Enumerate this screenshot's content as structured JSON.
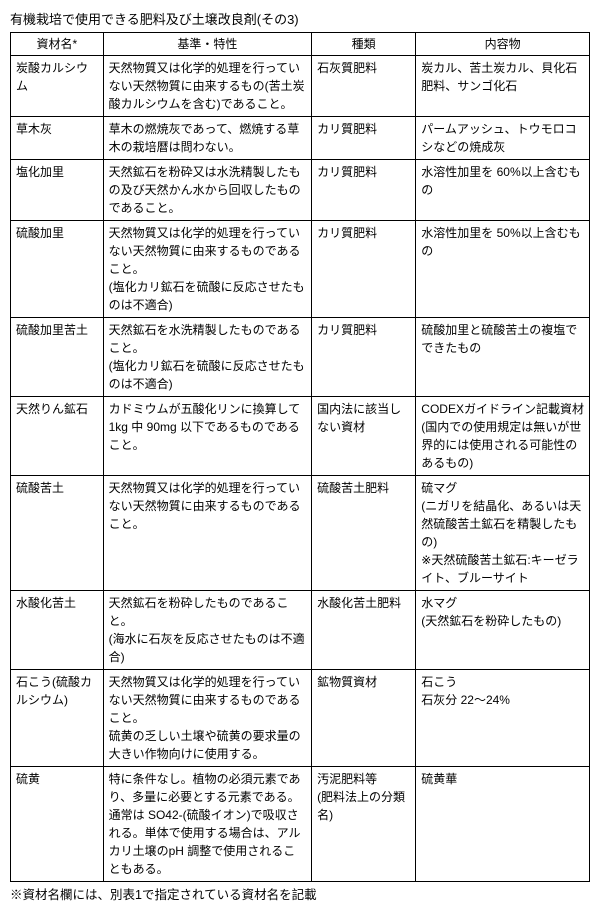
{
  "title": "有機栽培で使用できる肥料及び土壌改良剤(その3)",
  "headers": [
    "資材名*",
    "基準・特性",
    "種類",
    "内容物"
  ],
  "rows": [
    {
      "name": "炭酸カルシウム",
      "criteria": "天然物質又は化学的処理を行っていない天然物質に由来するもの(苦土炭酸カルシウムを含む)であること。",
      "type": "石灰質肥料",
      "content": "炭カル、苦土炭カル、貝化石肥料、サンゴ化石"
    },
    {
      "name": "草木灰",
      "criteria": "草木の燃焼灰であって、燃焼する草木の栽培暦は問わない。",
      "type": "カリ質肥料",
      "content": "パームアッシュ、トウモロコシなどの焼成灰"
    },
    {
      "name": "塩化加里",
      "criteria": "天然鉱石を粉砕又は水洗精製したもの及び天然かん水から回収したものであること。",
      "type": "カリ質肥料",
      "content": "水溶性加里を 60%以上含むもの"
    },
    {
      "name": "硫酸加里",
      "criteria": "天然物質又は化学的処理を行っていない天然物質に由来するものであること。\n(塩化カリ鉱石を硫酸に反応させたものは不適合)",
      "type": "カリ質肥料",
      "content": "水溶性加里を 50%以上含むもの"
    },
    {
      "name": "硫酸加里苦土",
      "criteria": "天然鉱石を水洗精製したものであること。\n(塩化カリ鉱石を硫酸に反応させたものは不適合)",
      "type": "カリ質肥料",
      "content": "硫酸加里と硫酸苦土の複塩でできたもの"
    },
    {
      "name": "天然りん鉱石",
      "criteria": "カドミウムが五酸化リンに換算して1kg 中 90mg 以下であるものであること。",
      "type": "国内法に該当しない資材",
      "content": "CODEXガイドライン記載資材(国内での使用規定は無いが世界的には使用される可能性のあるもの)"
    },
    {
      "name": "硫酸苦土",
      "criteria": "天然物質又は化学的処理を行っていない天然物質に由来するものであること。",
      "type": "硫酸苦土肥料",
      "content": "硫マグ\n(ニガリを結晶化、あるいは天然硫酸苦土鉱石を精製したもの)\n※天然硫酸苦土鉱石:キーゼライト、ブルーサイト"
    },
    {
      "name": "水酸化苦土",
      "criteria": "天然鉱石を粉砕したものであること。\n(海水に石灰を反応させたものは不適合)",
      "type": "水酸化苦土肥料",
      "content": "水マグ\n(天然鉱石を粉砕したもの)"
    },
    {
      "name": "石こう(硫酸カルシウム)",
      "criteria": "天然物質又は化学的処理を行っていない天然物質に由来するものであること。\n硫黄の乏しい土壌や硫黄の要求量の大きい作物向けに使用する。",
      "type": "鉱物質資材",
      "content": "石こう\n石灰分 22～24%"
    },
    {
      "name": "硫黄",
      "criteria": "特に条件なし。植物の必須元素であり、多量に必要とする元素である。\n通常は SO42-(硫酸イオン)で吸収される。単体で使用する場合は、アルカリ土壌のpH 調整で使用されることもある。",
      "type": "汚泥肥料等\n(肥料法上の分類名)",
      "content": "硫黄華"
    }
  ],
  "footnote": "※資材名欄には、別表1で指定されている資材名を記載"
}
